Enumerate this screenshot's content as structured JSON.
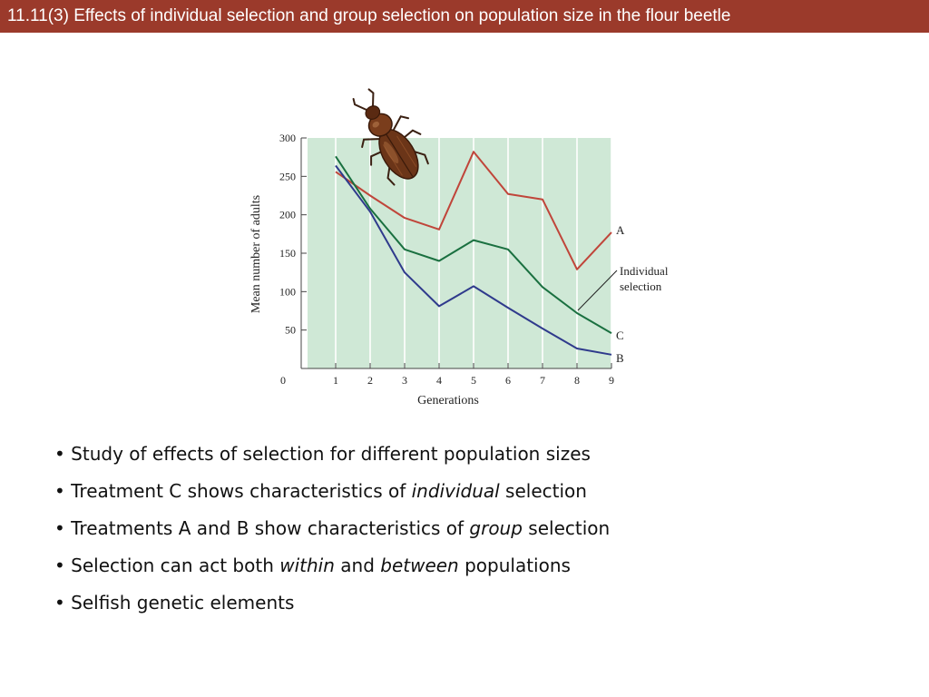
{
  "slide": {
    "title": "11.11(3)  Effects of individual selection and group selection on population size in the flour beetle"
  },
  "bullets": [
    {
      "parts": [
        {
          "text": "• Study of effects of selection for different population sizes",
          "italic": false
        }
      ]
    },
    {
      "parts": [
        {
          "text": "• Treatment C shows characteristics of ",
          "italic": false
        },
        {
          "text": "individual",
          "italic": true
        },
        {
          "text": " selection",
          "italic": false
        }
      ]
    },
    {
      "parts": [
        {
          "text": "• Treatments A and B show characteristics of ",
          "italic": false
        },
        {
          "text": "group",
          "italic": true
        },
        {
          "text": " selection",
          "italic": false
        }
      ]
    },
    {
      "parts": [
        {
          "text": "• Selection can act both ",
          "italic": false
        },
        {
          "text": "within",
          "italic": true
        },
        {
          "text": " and ",
          "italic": false
        },
        {
          "text": "between",
          "italic": true
        },
        {
          "text": " populations",
          "italic": false
        }
      ]
    },
    {
      "parts": [
        {
          "text": "• Selfish genetic elements",
          "italic": false
        }
      ]
    }
  ],
  "chart_data": {
    "type": "line",
    "title": "",
    "xlabel": "Generations",
    "ylabel": "Mean number of adults",
    "x": [
      1,
      2,
      3,
      4,
      5,
      6,
      7,
      8,
      9
    ],
    "x_ticks": [
      0,
      1,
      2,
      3,
      4,
      5,
      6,
      7,
      8,
      9
    ],
    "y_ticks": [
      50,
      100,
      150,
      200,
      250,
      300
    ],
    "xlim": [
      0,
      9
    ],
    "ylim": [
      0,
      300
    ],
    "grid": "vertical",
    "plot_background": "#cfe8d6",
    "series": [
      {
        "name": "A",
        "color": "#c0453a",
        "values": [
          256,
          225,
          196,
          181,
          282,
          227,
          220,
          129,
          177
        ]
      },
      {
        "name": "C",
        "color": "#1a7040",
        "values": [
          276,
          208,
          155,
          140,
          167,
          155,
          106,
          72,
          46
        ]
      },
      {
        "name": "B",
        "color": "#2f3a8c",
        "values": [
          264,
          204,
          125,
          81,
          107,
          79,
          52,
          26,
          18
        ]
      }
    ],
    "annotation": {
      "text_lines": [
        "Individual",
        "selection"
      ],
      "points_to": "C"
    },
    "illustration": "flour-beetle"
  }
}
